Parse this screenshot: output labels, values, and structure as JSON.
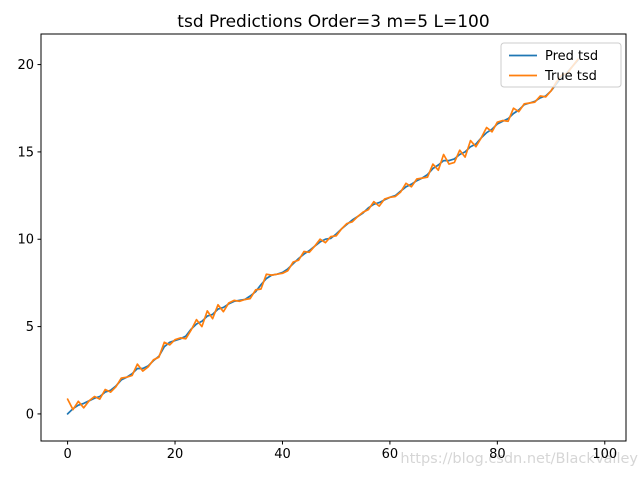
{
  "watermark": "https://blog.csdn.net/BlackValley",
  "chart_data": {
    "type": "line",
    "title": "tsd Predictions Order=3 m=5 L=100",
    "xlabel": "",
    "ylabel": "",
    "xticks": [
      0,
      20,
      40,
      60,
      80,
      100
    ],
    "yticks": [
      0,
      5,
      10,
      15,
      20
    ],
    "xlim": [
      -4.95,
      103.95
    ],
    "ylim": [
      -1.55,
      21.75
    ],
    "grid": false,
    "legend_position": "upper right",
    "x_note": "x = sample index, 0..95 step 1",
    "series": [
      {
        "name": "Pred tsd",
        "color": "#1f77b4",
        "values": [
          0.0,
          0.3,
          0.5,
          0.6,
          0.75,
          0.9,
          1.0,
          1.25,
          1.35,
          1.6,
          1.95,
          2.1,
          2.3,
          2.6,
          2.6,
          2.75,
          3.05,
          3.3,
          3.85,
          4.1,
          4.2,
          4.3,
          4.45,
          4.85,
          5.15,
          5.3,
          5.6,
          5.7,
          6.0,
          6.1,
          6.3,
          6.45,
          6.5,
          6.55,
          6.75,
          7.0,
          7.4,
          7.75,
          7.95,
          8.0,
          8.1,
          8.3,
          8.6,
          8.9,
          9.15,
          9.35,
          9.6,
          9.85,
          10.0,
          10.05,
          10.3,
          10.6,
          10.85,
          11.1,
          11.3,
          11.5,
          11.8,
          12.0,
          12.1,
          12.25,
          12.4,
          12.5,
          12.75,
          13.0,
          13.15,
          13.35,
          13.5,
          13.7,
          14.05,
          14.25,
          14.5,
          14.5,
          14.6,
          14.85,
          15.0,
          15.3,
          15.45,
          15.8,
          16.1,
          16.3,
          16.6,
          16.75,
          16.9,
          17.2,
          17.4,
          17.7,
          17.8,
          17.9,
          18.1,
          18.2,
          18.5,
          18.9,
          19.3,
          19.55,
          19.9,
          20.25
        ]
      },
      {
        "name": "True tsd",
        "color": "#ff7f0e",
        "values": [
          0.85,
          0.25,
          0.72,
          0.35,
          0.75,
          1.0,
          0.85,
          1.4,
          1.25,
          1.55,
          2.05,
          2.1,
          2.2,
          2.85,
          2.45,
          2.7,
          3.1,
          3.25,
          4.1,
          3.95,
          4.25,
          4.35,
          4.3,
          4.8,
          5.4,
          5.0,
          5.9,
          5.45,
          6.25,
          5.85,
          6.35,
          6.5,
          6.45,
          6.55,
          6.6,
          7.1,
          7.15,
          8.0,
          7.95,
          8.0,
          8.05,
          8.2,
          8.7,
          8.8,
          9.3,
          9.25,
          9.6,
          10.0,
          9.8,
          10.15,
          10.2,
          10.6,
          10.9,
          11.0,
          11.3,
          11.55,
          11.7,
          12.15,
          11.9,
          12.3,
          12.4,
          12.45,
          12.7,
          13.2,
          13.0,
          13.45,
          13.5,
          13.55,
          14.3,
          13.95,
          14.85,
          14.3,
          14.4,
          15.1,
          14.7,
          15.65,
          15.3,
          15.8,
          16.4,
          16.15,
          16.7,
          16.8,
          16.75,
          17.5,
          17.3,
          17.75,
          17.8,
          17.85,
          18.2,
          18.15,
          18.5,
          19.0,
          19.4,
          19.5,
          19.9,
          20.3
        ]
      }
    ]
  }
}
